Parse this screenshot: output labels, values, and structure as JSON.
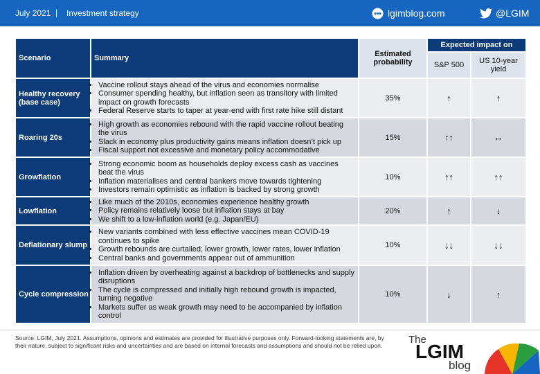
{
  "header": {
    "date": "July 2021",
    "section": "Investment strategy",
    "site": "lgimblog.com",
    "handle": "@LGIM"
  },
  "table": {
    "columns": {
      "scenario": "Scenario",
      "summary": "Summary",
      "probability": "Estimated probability",
      "impact": "Expected impact on",
      "sp500": "S&P 500",
      "us10y": "US 10-year yield"
    },
    "rows": [
      {
        "scenario": "Healthy recovery (base case)",
        "summary": [
          "Vaccine rollout stays ahead of the virus and economies normalise",
          "Consumer spending healthy, but inflation seen as transitory with limited impact on growth forecasts",
          "Federal Reserve starts to taper at year-end with first rate hike still distant"
        ],
        "probability": "35%",
        "sp500": "↑",
        "us10y": "↑"
      },
      {
        "scenario": "Roaring 20s",
        "summary": [
          "High growth as economies rebound with the rapid vaccine rollout beating the virus",
          "Slack in economy plus productivity gains means inflation doesn’t pick up",
          "Fiscal support not excessive and monetary policy accommodative"
        ],
        "probability": "15%",
        "sp500": "↑↑",
        "us10y": "↔"
      },
      {
        "scenario": "Growflation",
        "summary": [
          "Strong economic boom as households deploy excess cash as vaccines beat the virus",
          "Inflation materialises and central bankers move towards tightening",
          "Investors remain optimistic as inflation is backed by strong growth"
        ],
        "probability": "10%",
        "sp500": "↑↑",
        "us10y": "↑↑"
      },
      {
        "scenario": "Lowflation",
        "summary": [
          "Like much of the 2010s, economies experience healthy growth",
          "Policy remains relatively loose but inflation stays at bay",
          "We shift to a low-inflation world (e.g. Japan/EU)"
        ],
        "probability": "20%",
        "sp500": "↑",
        "us10y": "↓"
      },
      {
        "scenario": "Deflationary slump",
        "summary": [
          "New variants combined with less effective vaccines mean COVID-19 continues to spike",
          "Growth rebounds are curtailed; lower growth, lower rates, lower inflation",
          "Central banks and governments appear out of ammunition"
        ],
        "probability": "10%",
        "sp500": "↓↓",
        "us10y": "↓↓"
      },
      {
        "scenario": "Cycle compression",
        "summary": [
          "Inflation driven by overheating against a backdrop of bottlenecks and supply disruptions",
          "The cycle is compressed and initially high rebound growth is impacted, turning negative",
          "Markets suffer as weak growth may need to be accompanied by inflation control"
        ],
        "probability": "10%",
        "sp500": "↓",
        "us10y": "↑"
      }
    ]
  },
  "footer": {
    "source": "Source: LGIM, July 2021. Assumptions, opinions and estimates are provided for illustrative purposes only. Forward-looking statements are, by their nature, subject to significant risks and uncertainties and are based on internal forecasts and assumptions and should not be relied upon.",
    "logo": {
      "the": "The",
      "lgim": "LGIM",
      "blog": "blog"
    }
  }
}
